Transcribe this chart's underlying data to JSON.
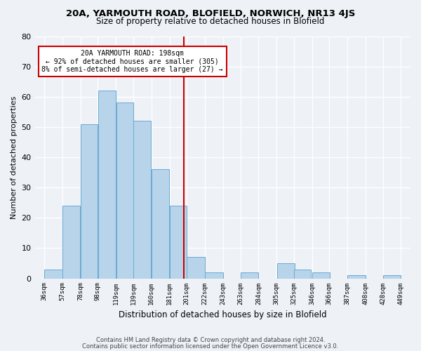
{
  "title1": "20A, YARMOUTH ROAD, BLOFIELD, NORWICH, NR13 4JS",
  "title2": "Size of property relative to detached houses in Blofield",
  "xlabel": "Distribution of detached houses by size in Blofield",
  "ylabel": "Number of detached properties",
  "bar_left_edges": [
    36,
    57,
    78,
    98,
    119,
    139,
    160,
    181,
    201,
    222,
    243,
    263,
    284,
    305,
    325,
    346,
    366,
    387,
    408,
    428
  ],
  "bar_heights": [
    3,
    24,
    51,
    62,
    58,
    52,
    36,
    24,
    7,
    2,
    0,
    2,
    0,
    5,
    3,
    2,
    0,
    1,
    0,
    1
  ],
  "bar_widths": [
    21,
    21,
    20,
    21,
    20,
    21,
    21,
    20,
    21,
    21,
    20,
    21,
    21,
    21,
    20,
    21,
    21,
    21,
    20,
    21
  ],
  "tick_labels": [
    "36sqm",
    "57sqm",
    "78sqm",
    "98sqm",
    "119sqm",
    "139sqm",
    "160sqm",
    "181sqm",
    "201sqm",
    "222sqm",
    "243sqm",
    "263sqm",
    "284sqm",
    "305sqm",
    "325sqm",
    "346sqm",
    "366sqm",
    "387sqm",
    "408sqm",
    "428sqm",
    "449sqm"
  ],
  "tick_positions": [
    36,
    57,
    78,
    98,
    119,
    139,
    160,
    181,
    201,
    222,
    243,
    263,
    284,
    305,
    325,
    346,
    366,
    387,
    408,
    428,
    449
  ],
  "bar_color": "#b8d4ea",
  "bar_edge_color": "#6aaad4",
  "vline_x": 198,
  "vline_color": "#cc0000",
  "annotation_title": "20A YARMOUTH ROAD: 198sqm",
  "annotation_line1": "← 92% of detached houses are smaller (305)",
  "annotation_line2": "8% of semi-detached houses are larger (27) →",
  "box_facecolor": "#ffffff",
  "box_edgecolor": "#cc0000",
  "ylim": [
    0,
    80
  ],
  "xlim": [
    25,
    460
  ],
  "yticks": [
    0,
    10,
    20,
    30,
    40,
    50,
    60,
    70,
    80
  ],
  "footer1": "Contains HM Land Registry data © Crown copyright and database right 2024.",
  "footer2": "Contains public sector information licensed under the Open Government Licence v3.0.",
  "bg_color": "#eef2f7"
}
